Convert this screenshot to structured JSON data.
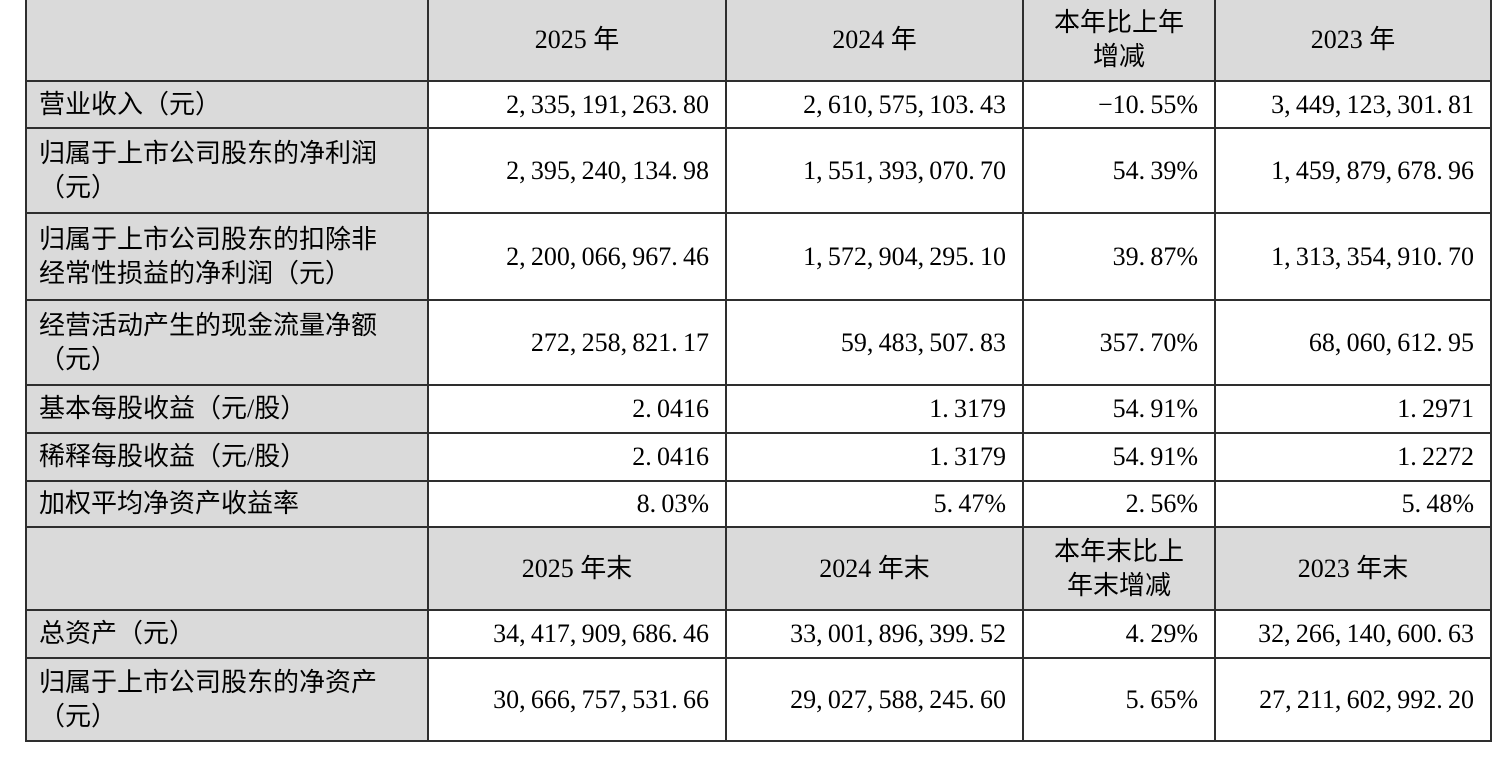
{
  "colors": {
    "header_bg": "#dadada",
    "label_bg": "#dadada",
    "value_bg": "#ffffff",
    "border": "#2e2e2e",
    "text": "#000000"
  },
  "table": {
    "sections": [
      {
        "header": [
          "2025 年",
          "2024 年",
          "本年比上年\n增减",
          "2023 年"
        ],
        "rows": [
          {
            "label": "营业收入（元）",
            "values": [
              "2,335,191,263.80",
              "2,610,575,103.43",
              "-10.55%",
              "3,449,123,301.81"
            ]
          },
          {
            "label": "归属于上市公司股东的净利润\n（元）",
            "values": [
              "2,395,240,134.98",
              "1,551,393,070.70",
              "54.39%",
              "1,459,879,678.96"
            ]
          },
          {
            "label": "归属于上市公司股东的扣除非\n经常性损益的净利润（元）",
            "values": [
              "2,200,066,967.46",
              "1,572,904,295.10",
              "39.87%",
              "1,313,354,910.70"
            ]
          },
          {
            "label": "经营活动产生的现金流量净额\n（元）",
            "values": [
              "272,258,821.17",
              "59,483,507.83",
              "357.70%",
              "68,060,612.95"
            ]
          },
          {
            "label": "基本每股收益（元/股）",
            "values": [
              "2.0416",
              "1.3179",
              "54.91%",
              "1.2971"
            ]
          },
          {
            "label": "稀释每股收益（元/股）",
            "values": [
              "2.0416",
              "1.3179",
              "54.91%",
              "1.2272"
            ]
          },
          {
            "label": "加权平均净资产收益率",
            "values": [
              "8.03%",
              "5.47%",
              "2.56%",
              "5.48%"
            ]
          }
        ]
      },
      {
        "header": [
          "2025 年末",
          "2024 年末",
          "本年末比上\n年末增减",
          "2023 年末"
        ],
        "rows": [
          {
            "label": "总资产（元）",
            "values": [
              "34,417,909,686.46",
              "33,001,896,399.52",
              "4.29%",
              "32,266,140,600.63"
            ]
          },
          {
            "label": "归属于上市公司股东的净资产\n（元）",
            "values": [
              "30,666,757,531.66",
              "29,027,588,245.60",
              "5.65%",
              "27,211,602,992.20"
            ]
          }
        ]
      }
    ]
  }
}
